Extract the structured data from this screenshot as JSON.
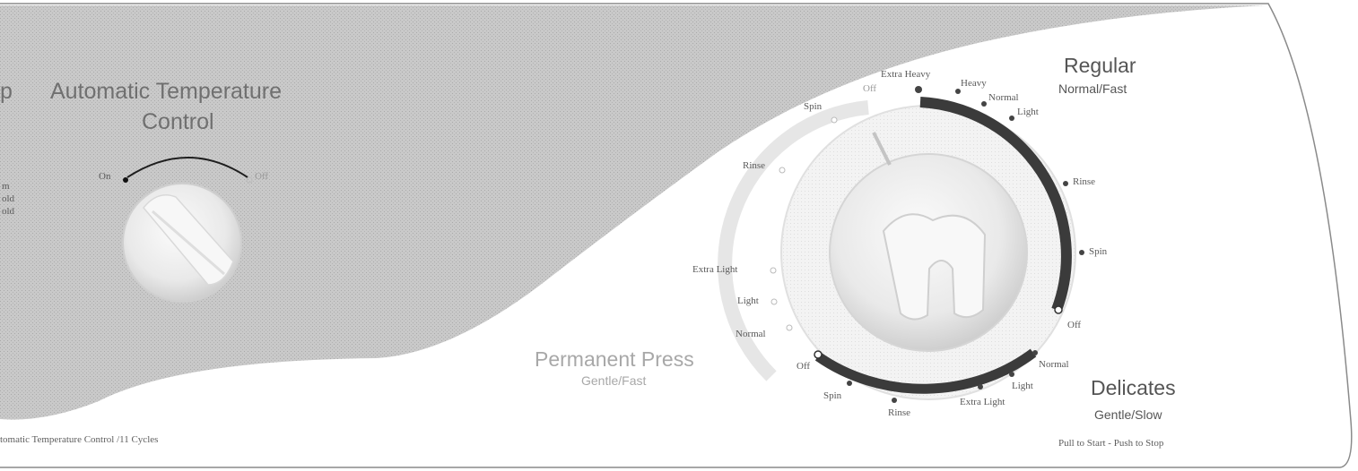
{
  "temperature_control": {
    "partial_heading": "p",
    "title_line1": "Automatic Temperature",
    "title_line2": "Control",
    "on_label": "On",
    "off_label": "Off",
    "partial_options": [
      "m",
      "old",
      "old"
    ]
  },
  "cycle_dial": {
    "regular": {
      "title": "Regular",
      "subtitle": "Normal/Fast",
      "positions": [
        "Extra Heavy",
        "Heavy",
        "Normal",
        "Light",
        "Rinse",
        "Spin",
        "Off"
      ]
    },
    "permanent_press": {
      "title": "Permanent Press",
      "subtitle": "Gentle/Fast",
      "positions": [
        "Off",
        "Spin",
        "Rinse",
        "Extra Light",
        "Light",
        "Normal"
      ]
    },
    "delicates": {
      "title": "Delicates",
      "subtitle": "Gentle/Slow",
      "positions": [
        "Normal",
        "Light",
        "Extra Light",
        "Rinse",
        "Spin",
        "Off"
      ]
    },
    "instruction": "Pull to Start - Push to Stop"
  },
  "footer": {
    "model_text": "tomatic Temperature Control /11 Cycles"
  },
  "colors": {
    "panel_gray": "#c7c7c7",
    "dark_arc": "#3b3b3b",
    "light_arc": "#e2e2e2",
    "text_gray": "#707070"
  }
}
